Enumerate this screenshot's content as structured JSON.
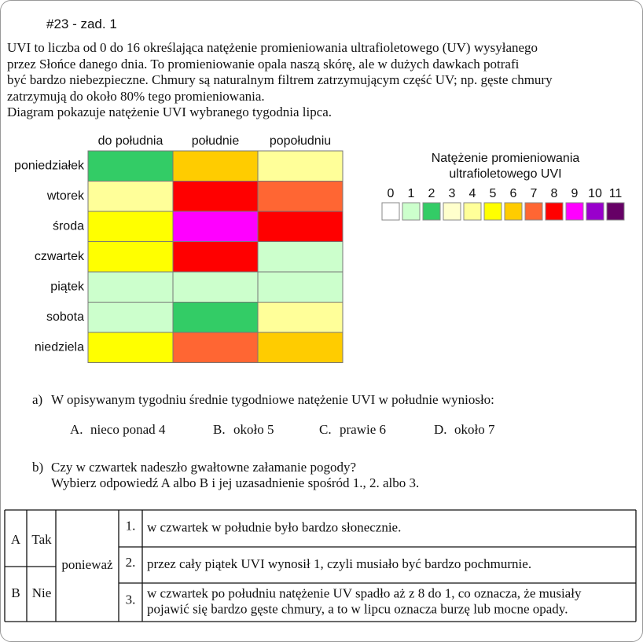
{
  "header": {
    "title": "#23 - zad. 1"
  },
  "intro": [
    "UVI to liczba od 0 do 16 określająca natężenie promieniowania ultrafioletowego (UV) wysyłanego",
    "przez Słońce danego dnia. To promieniowanie opala naszą skórę, ale w dużych dawkach potrafi",
    "być bardzo niebezpieczne. Chmury są naturalnym filtrem zatrzymującym część UV; np. gęste chmury",
    "zatrzymują do około 80% tego promieniowania.",
    "Diagram pokazuje natężenie UVI wybranego tygodnia lipca."
  ],
  "heatmap": {
    "columns": [
      "do południa",
      "południe",
      "popołudniu"
    ],
    "rows": [
      {
        "label": "poniedziałek",
        "values": [
          2,
          6,
          4
        ]
      },
      {
        "label": "wtorek",
        "values": [
          4,
          8,
          7
        ]
      },
      {
        "label": "środa",
        "values": [
          5,
          9,
          8
        ]
      },
      {
        "label": "czwartek",
        "values": [
          5,
          8,
          1
        ]
      },
      {
        "label": "piątek",
        "values": [
          1,
          1,
          1
        ]
      },
      {
        "label": "sobota",
        "values": [
          1,
          2,
          4
        ]
      },
      {
        "label": "niedziela",
        "values": [
          5,
          7,
          6
        ]
      }
    ]
  },
  "legend": {
    "title": [
      "Natężenie promieniowania",
      "ultrafioletowego UVI"
    ],
    "levels": [
      {
        "value": 0,
        "color": "#ffffff"
      },
      {
        "value": 1,
        "color": "#ccffcc"
      },
      {
        "value": 2,
        "color": "#33cc66"
      },
      {
        "value": 3,
        "color": "#ffffcc"
      },
      {
        "value": 4,
        "color": "#ffff99"
      },
      {
        "value": 5,
        "color": "#ffff00"
      },
      {
        "value": 6,
        "color": "#ffcc00"
      },
      {
        "value": 7,
        "color": "#ff6633"
      },
      {
        "value": 8,
        "color": "#ff0000"
      },
      {
        "value": 9,
        "color": "#ff00ff"
      },
      {
        "value": 10,
        "color": "#9900cc"
      },
      {
        "value": 11,
        "color": "#660066"
      }
    ]
  },
  "question_a": {
    "label": "a)",
    "text": "W opisywanym tygodniu średnie tygodniowe natężenie UVI w południe wyniosło:",
    "options": [
      {
        "letter": "A.",
        "text": "nieco ponad 4"
      },
      {
        "letter": "B.",
        "text": "około 5"
      },
      {
        "letter": "C.",
        "text": "prawie 6"
      },
      {
        "letter": "D.",
        "text": "około 7"
      }
    ]
  },
  "question_b": {
    "label": "b)",
    "lines": [
      "Czy w czwartek nadeszło gwałtowne załamanie pogody?",
      "Wybierz odpowiedź A albo B i jej uzasadnienie spośród 1., 2. albo 3."
    ],
    "table": {
      "answers": [
        {
          "letter": "A",
          "text": "Tak"
        },
        {
          "letter": "B",
          "text": "Nie"
        }
      ],
      "connector": "ponieważ",
      "reasons": [
        {
          "number": "1.",
          "lines": [
            "w czwartek w południe było bardzo słonecznie."
          ]
        },
        {
          "number": "2.",
          "lines": [
            "przez cały piątek UVI wynosił 1, czyli musiało być bardzo pochmurnie."
          ]
        },
        {
          "number": "3.",
          "lines": [
            "w czwartek po południu natężenie UV spadło aż z 8 do 1, co oznacza, że musiały",
            "pojawić się bardzo gęste chmury, a to w lipcu oznacza burzę lub mocne opady."
          ]
        }
      ]
    }
  }
}
